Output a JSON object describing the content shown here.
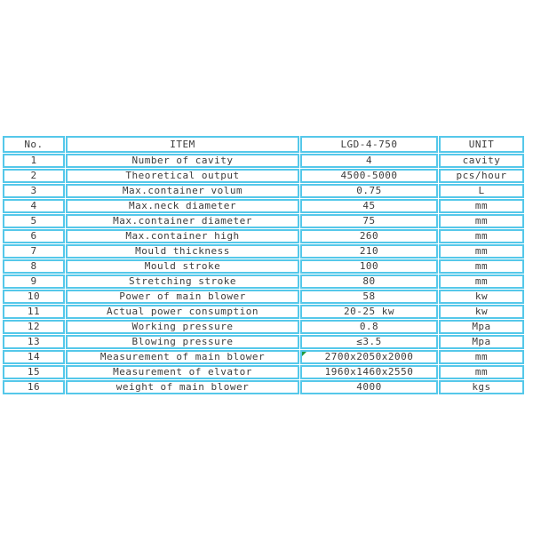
{
  "page": {
    "background": "#ffffff"
  },
  "table": {
    "border_color": "#55c8ea",
    "text_color": "#3c3c3c",
    "marker_color": "#1f9a3f",
    "columns": [
      "No.",
      "ITEM",
      "LGD-4-750",
      "UNIT"
    ],
    "rows": [
      {
        "no": "1",
        "item": "Number of cavity",
        "value": "4",
        "unit": "cavity"
      },
      {
        "no": "2",
        "item": "Theoretical output",
        "value": "4500-5000",
        "unit": "pcs/hour"
      },
      {
        "no": "3",
        "item": "Max.container volum",
        "value": "0.75",
        "unit": "L"
      },
      {
        "no": "4",
        "item": "Max.neck diameter",
        "value": "45",
        "unit": "mm"
      },
      {
        "no": "5",
        "item": "Max.container diameter",
        "value": "75",
        "unit": "mm"
      },
      {
        "no": "6",
        "item": "Max.container high",
        "value": "260",
        "unit": "mm"
      },
      {
        "no": "7",
        "item": "Mould thickness",
        "value": "210",
        "unit": "mm"
      },
      {
        "no": "8",
        "item": "Mould stroke",
        "value": "100",
        "unit": "mm"
      },
      {
        "no": "9",
        "item": "Stretching stroke",
        "value": "80",
        "unit": "mm"
      },
      {
        "no": "10",
        "item": "Power of main blower",
        "value": "58",
        "unit": "kw"
      },
      {
        "no": "11",
        "item": "Actual power consumption",
        "value": "20-25 kw",
        "unit": "kw"
      },
      {
        "no": "12",
        "item": "Working pressure",
        "value": "0.8",
        "unit": "Mpa"
      },
      {
        "no": "13",
        "item": "Blowing pressure",
        "value": "≤3.5",
        "unit": "Mpa"
      },
      {
        "no": "14",
        "item": "Measurement of main blower",
        "value": "2700x2050x2000",
        "unit": "mm",
        "marker": true,
        "altfont": true
      },
      {
        "no": "15",
        "item": "Measurement of elvator",
        "value": "1960x1460x2550",
        "unit": "mm"
      },
      {
        "no": "16",
        "item": "weight of main blower",
        "value": "4000",
        "unit": "kgs"
      }
    ]
  }
}
